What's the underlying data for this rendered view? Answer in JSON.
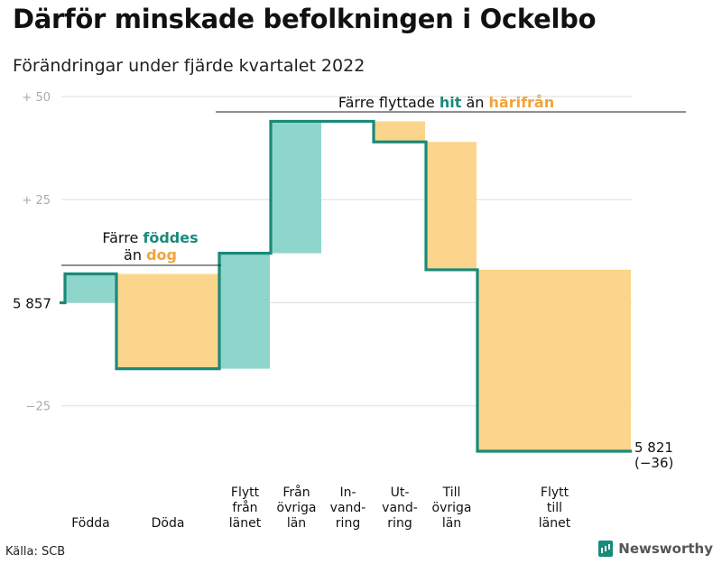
{
  "title": "Därför minskade befolkningen i Ockelbo",
  "subtitle": "Förändringar under fjärde kvartalet 2022",
  "source": "Källa: SCB",
  "brand": "Newsworthy",
  "colors": {
    "line": "#1a8a7a",
    "increase": "#8ed6cb",
    "decrease": "#fbd58c",
    "hit": "#1a8a7a",
    "harifran": "#f2a43a",
    "grid": "#dddddd",
    "tick": "#aaaaaa"
  },
  "chart_data": {
    "type": "waterfall",
    "start_value": 5857,
    "start_label": "5 857",
    "end_value": 5821,
    "end_label": "5 821",
    "end_change_label": "(−36)",
    "ylim": [
      -36,
      50
    ],
    "yticks": [
      {
        "value": 50,
        "label": "+ 50"
      },
      {
        "value": 25,
        "label": "+ 25"
      },
      {
        "value": -25,
        "label": "−25"
      }
    ],
    "steps": [
      {
        "label": [
          "Födda"
        ],
        "delta": 7,
        "kind": "increase"
      },
      {
        "label": [
          "Döda"
        ],
        "delta": -23,
        "kind": "decrease"
      },
      {
        "label": [
          "Flytt",
          "från",
          "länet"
        ],
        "delta": 28,
        "kind": "increase"
      },
      {
        "label": [
          "Från",
          "övriga",
          "län"
        ],
        "delta": 32,
        "kind": "increase"
      },
      {
        "label": [
          "In-",
          "vand-",
          "ring"
        ],
        "delta": 0,
        "kind": "increase"
      },
      {
        "label": [
          "Ut-",
          "vand-",
          "ring"
        ],
        "delta": -5,
        "kind": "decrease"
      },
      {
        "label": [
          "Till",
          "övriga",
          "län"
        ],
        "delta": -31,
        "kind": "decrease"
      },
      {
        "label": [
          "Flytt",
          "till",
          "länet"
        ],
        "delta": -44,
        "kind": "decrease"
      }
    ],
    "annotations": [
      {
        "id": "birth",
        "parts": [
          "Färre ",
          "föddes"
        ],
        "parts2": [
          "än ",
          "dog"
        ],
        "span": [
          0,
          1
        ]
      },
      {
        "id": "moves",
        "parts": [
          "Färre flyttade ",
          "hit",
          " än ",
          "härifrån"
        ],
        "span": [
          2,
          7
        ]
      }
    ]
  }
}
